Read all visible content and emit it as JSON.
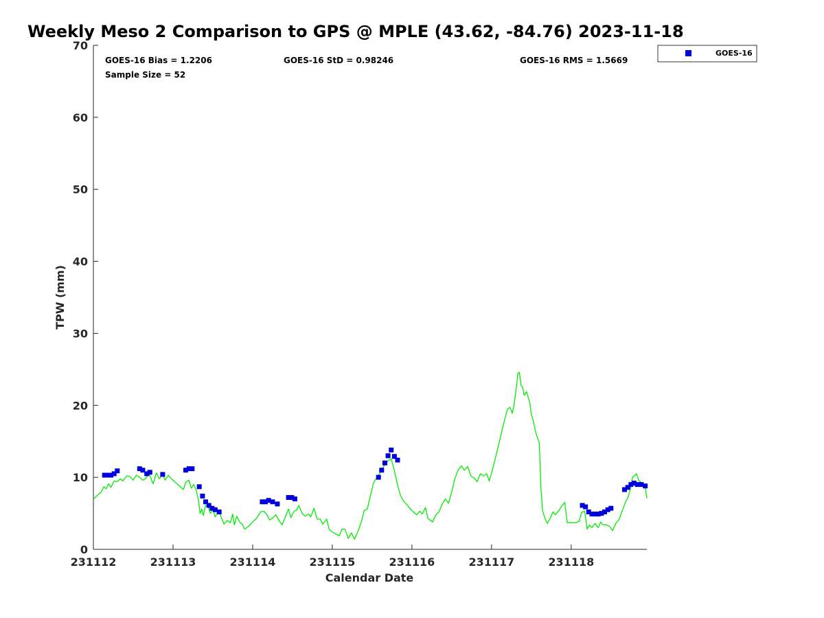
{
  "chart_data": {
    "type": "scatter",
    "title": "Weekly Meso 2 Comparison to GPS @ MPLE (43.62, -84.76) 2023-11-18",
    "xlabel": "Calendar Date",
    "ylabel": "TPW (mm)",
    "xlim": [
      231112.0,
      231118.95
    ],
    "ylim": [
      0,
      70
    ],
    "x_ticks": [
      {
        "value": 231112,
        "label": "231112"
      },
      {
        "value": 231113,
        "label": "231113"
      },
      {
        "value": 231114,
        "label": "231114"
      },
      {
        "value": 231115,
        "label": "231115"
      },
      {
        "value": 231116,
        "label": "231116"
      },
      {
        "value": 231117,
        "label": "231117"
      },
      {
        "value": 231118,
        "label": "231118"
      }
    ],
    "y_ticks": [
      {
        "value": 0,
        "label": "0"
      },
      {
        "value": 10,
        "label": "10"
      },
      {
        "value": 20,
        "label": "20"
      },
      {
        "value": 30,
        "label": "30"
      },
      {
        "value": 40,
        "label": "40"
      },
      {
        "value": 50,
        "label": "50"
      },
      {
        "value": 60,
        "label": "60"
      },
      {
        "value": 70,
        "label": "70"
      }
    ],
    "stats": {
      "bias": "GOES-16 Bias = 1.2206",
      "std": "GOES-16 StD = 0.98246",
      "rms": "GOES-16 RMS = 1.5669",
      "sample": "Sample Size = 52"
    },
    "legend": {
      "position": "top-right-outside",
      "entries": [
        "GOES-16"
      ]
    },
    "series": [
      {
        "name": "GOES-16",
        "kind": "marker",
        "color": "#0000dd",
        "points": [
          [
            231112.14,
            10.3
          ],
          [
            231112.18,
            10.3
          ],
          [
            231112.22,
            10.3
          ],
          [
            231112.26,
            10.5
          ],
          [
            231112.3,
            10.9
          ],
          [
            231112.58,
            11.2
          ],
          [
            231112.62,
            11.0
          ],
          [
            231112.67,
            10.5
          ],
          [
            231112.71,
            10.7
          ],
          [
            231112.87,
            10.4
          ],
          [
            231113.16,
            11.0
          ],
          [
            231113.2,
            11.2
          ],
          [
            231113.24,
            11.2
          ],
          [
            231113.33,
            8.7
          ],
          [
            231113.37,
            7.4
          ],
          [
            231113.41,
            6.6
          ],
          [
            231113.45,
            6.1
          ],
          [
            231113.49,
            5.7
          ],
          [
            231113.53,
            5.5
          ],
          [
            231113.58,
            5.2
          ],
          [
            231114.12,
            6.6
          ],
          [
            231114.16,
            6.6
          ],
          [
            231114.2,
            6.8
          ],
          [
            231114.25,
            6.6
          ],
          [
            231114.31,
            6.3
          ],
          [
            231114.45,
            7.2
          ],
          [
            231114.49,
            7.2
          ],
          [
            231114.53,
            7.0
          ],
          [
            231115.58,
            10.0
          ],
          [
            231115.62,
            11.0
          ],
          [
            231115.66,
            12.0
          ],
          [
            231115.7,
            13.0
          ],
          [
            231115.74,
            13.8
          ],
          [
            231115.78,
            12.9
          ],
          [
            231115.82,
            12.4
          ],
          [
            231118.14,
            6.1
          ],
          [
            231118.18,
            5.9
          ],
          [
            231118.22,
            5.2
          ],
          [
            231118.26,
            4.9
          ],
          [
            231118.3,
            4.9
          ],
          [
            231118.34,
            4.9
          ],
          [
            231118.38,
            5.0
          ],
          [
            231118.42,
            5.2
          ],
          [
            231118.46,
            5.5
          ],
          [
            231118.5,
            5.7
          ],
          [
            231118.67,
            8.3
          ],
          [
            231118.71,
            8.6
          ],
          [
            231118.75,
            9.0
          ],
          [
            231118.79,
            9.2
          ],
          [
            231118.83,
            9.0
          ],
          [
            231118.88,
            9.0
          ],
          [
            231118.93,
            8.8
          ]
        ]
      },
      {
        "name": "",
        "kind": "line",
        "color": "#00ee00",
        "points": [
          [
            231112.0,
            7.0
          ],
          [
            231112.05,
            7.5
          ],
          [
            231112.1,
            8.0
          ],
          [
            231112.13,
            8.7
          ],
          [
            231112.16,
            8.4
          ],
          [
            231112.19,
            9.1
          ],
          [
            231112.22,
            8.6
          ],
          [
            231112.26,
            9.5
          ],
          [
            231112.3,
            9.4
          ],
          [
            231112.34,
            9.8
          ],
          [
            231112.37,
            9.5
          ],
          [
            231112.42,
            10.2
          ],
          [
            231112.46,
            10.1
          ],
          [
            231112.5,
            9.6
          ],
          [
            231112.54,
            10.3
          ],
          [
            231112.58,
            10.0
          ],
          [
            231112.62,
            9.6
          ],
          [
            231112.66,
            9.9
          ],
          [
            231112.7,
            10.5
          ],
          [
            231112.75,
            9.1
          ],
          [
            231112.79,
            10.6
          ],
          [
            231112.83,
            9.8
          ],
          [
            231112.87,
            10.5
          ],
          [
            231112.9,
            9.6
          ],
          [
            231112.94,
            10.3
          ],
          [
            231112.98,
            9.8
          ],
          [
            231113.02,
            9.4
          ],
          [
            231113.06,
            9.0
          ],
          [
            231113.1,
            8.6
          ],
          [
            231113.13,
            8.3
          ],
          [
            231113.16,
            9.3
          ],
          [
            231113.2,
            9.6
          ],
          [
            231113.23,
            8.5
          ],
          [
            231113.26,
            9.0
          ],
          [
            231113.29,
            8.3
          ],
          [
            231113.32,
            6.8
          ],
          [
            231113.34,
            5.0
          ],
          [
            231113.36,
            5.6
          ],
          [
            231113.38,
            4.7
          ],
          [
            231113.41,
            6.1
          ],
          [
            231113.44,
            5.9
          ],
          [
            231113.47,
            5.0
          ],
          [
            231113.5,
            5.6
          ],
          [
            231113.53,
            4.5
          ],
          [
            231113.57,
            5.3
          ],
          [
            231113.6,
            4.6
          ],
          [
            231113.64,
            3.5
          ],
          [
            231113.68,
            4.0
          ],
          [
            231113.72,
            3.7
          ],
          [
            231113.75,
            4.9
          ],
          [
            231113.77,
            3.4
          ],
          [
            231113.8,
            4.6
          ],
          [
            231113.84,
            3.7
          ],
          [
            231113.87,
            3.5
          ],
          [
            231113.9,
            2.8
          ],
          [
            231113.95,
            3.2
          ],
          [
            231114.0,
            3.8
          ],
          [
            231114.05,
            4.3
          ],
          [
            231114.1,
            5.2
          ],
          [
            231114.14,
            5.3
          ],
          [
            231114.18,
            4.8
          ],
          [
            231114.21,
            4.1
          ],
          [
            231114.25,
            4.3
          ],
          [
            231114.29,
            4.8
          ],
          [
            231114.33,
            4.0
          ],
          [
            231114.37,
            3.4
          ],
          [
            231114.41,
            4.5
          ],
          [
            231114.45,
            5.6
          ],
          [
            231114.48,
            4.4
          ],
          [
            231114.52,
            5.3
          ],
          [
            231114.55,
            5.4
          ],
          [
            231114.58,
            6.1
          ],
          [
            231114.62,
            5.0
          ],
          [
            231114.66,
            4.6
          ],
          [
            231114.7,
            4.9
          ],
          [
            231114.73,
            4.5
          ],
          [
            231114.77,
            5.7
          ],
          [
            231114.81,
            4.2
          ],
          [
            231114.85,
            4.2
          ],
          [
            231114.88,
            3.5
          ],
          [
            231114.93,
            4.2
          ],
          [
            231114.96,
            2.8
          ],
          [
            231115.0,
            2.4
          ],
          [
            231115.05,
            2.1
          ],
          [
            231115.09,
            1.9
          ],
          [
            231115.12,
            2.8
          ],
          [
            231115.16,
            2.8
          ],
          [
            231115.2,
            1.5
          ],
          [
            231115.24,
            2.3
          ],
          [
            231115.28,
            1.4
          ],
          [
            231115.32,
            2.4
          ],
          [
            231115.37,
            4.0
          ],
          [
            231115.4,
            5.4
          ],
          [
            231115.44,
            5.6
          ],
          [
            231115.48,
            7.5
          ],
          [
            231115.52,
            9.3
          ],
          [
            231115.58,
            10.3
          ],
          [
            231115.62,
            11.0
          ],
          [
            231115.66,
            11.8
          ],
          [
            231115.7,
            12.3
          ],
          [
            231115.74,
            12.6
          ],
          [
            231115.78,
            10.9
          ],
          [
            231115.82,
            8.9
          ],
          [
            231115.86,
            7.4
          ],
          [
            231115.9,
            6.6
          ],
          [
            231115.94,
            6.2
          ],
          [
            231115.98,
            5.6
          ],
          [
            231116.02,
            5.2
          ],
          [
            231116.06,
            4.8
          ],
          [
            231116.1,
            5.3
          ],
          [
            231116.13,
            4.9
          ],
          [
            231116.17,
            5.8
          ],
          [
            231116.2,
            4.3
          ],
          [
            231116.26,
            3.8
          ],
          [
            231116.3,
            4.8
          ],
          [
            231116.34,
            5.2
          ],
          [
            231116.38,
            6.3
          ],
          [
            231116.42,
            7.0
          ],
          [
            231116.46,
            6.4
          ],
          [
            231116.5,
            8.0
          ],
          [
            231116.54,
            9.8
          ],
          [
            231116.58,
            11.0
          ],
          [
            231116.62,
            11.6
          ],
          [
            231116.66,
            11.0
          ],
          [
            231116.7,
            11.5
          ],
          [
            231116.74,
            10.2
          ],
          [
            231116.78,
            9.9
          ],
          [
            231116.82,
            9.4
          ],
          [
            231116.86,
            10.5
          ],
          [
            231116.9,
            10.2
          ],
          [
            231116.94,
            10.5
          ],
          [
            231116.97,
            9.5
          ],
          [
            231117.0,
            10.6
          ],
          [
            231117.04,
            12.3
          ],
          [
            231117.08,
            14.1
          ],
          [
            231117.12,
            16.0
          ],
          [
            231117.16,
            17.8
          ],
          [
            231117.2,
            19.5
          ],
          [
            231117.23,
            19.7
          ],
          [
            231117.26,
            18.9
          ],
          [
            231117.28,
            19.9
          ],
          [
            231117.31,
            22.3
          ],
          [
            231117.33,
            24.4
          ],
          [
            231117.35,
            24.6
          ],
          [
            231117.37,
            22.8
          ],
          [
            231117.39,
            22.5
          ],
          [
            231117.41,
            21.4
          ],
          [
            231117.44,
            21.9
          ],
          [
            231117.48,
            20.4
          ],
          [
            231117.5,
            18.7
          ],
          [
            231117.52,
            18.0
          ],
          [
            231117.56,
            16.0
          ],
          [
            231117.6,
            14.8
          ],
          [
            231117.62,
            8.5
          ],
          [
            231117.64,
            5.4
          ],
          [
            231117.67,
            4.3
          ],
          [
            231117.7,
            3.6
          ],
          [
            231117.74,
            4.4
          ],
          [
            231117.77,
            5.2
          ],
          [
            231117.8,
            4.8
          ],
          [
            231117.84,
            5.3
          ],
          [
            231117.88,
            6.0
          ],
          [
            231117.92,
            6.5
          ],
          [
            231117.95,
            3.7
          ],
          [
            231118.0,
            3.7
          ],
          [
            231118.06,
            3.7
          ],
          [
            231118.1,
            3.9
          ],
          [
            231118.13,
            5.1
          ],
          [
            231118.17,
            5.3
          ],
          [
            231118.2,
            2.8
          ],
          [
            231118.23,
            3.4
          ],
          [
            231118.26,
            3.0
          ],
          [
            231118.3,
            3.6
          ],
          [
            231118.34,
            3.0
          ],
          [
            231118.37,
            3.8
          ],
          [
            231118.4,
            3.4
          ],
          [
            231118.44,
            3.4
          ],
          [
            231118.48,
            3.2
          ],
          [
            231118.52,
            2.6
          ],
          [
            231118.56,
            3.6
          ],
          [
            231118.6,
            4.1
          ],
          [
            231118.64,
            5.3
          ],
          [
            231118.68,
            6.5
          ],
          [
            231118.72,
            7.4
          ],
          [
            231118.75,
            8.7
          ],
          [
            231118.77,
            10.0
          ],
          [
            231118.8,
            10.3
          ],
          [
            231118.82,
            10.5
          ],
          [
            231118.85,
            9.5
          ],
          [
            231118.87,
            9.4
          ],
          [
            231118.9,
            9.0
          ],
          [
            231118.93,
            8.6
          ],
          [
            231118.95,
            7.1
          ]
        ]
      }
    ]
  }
}
